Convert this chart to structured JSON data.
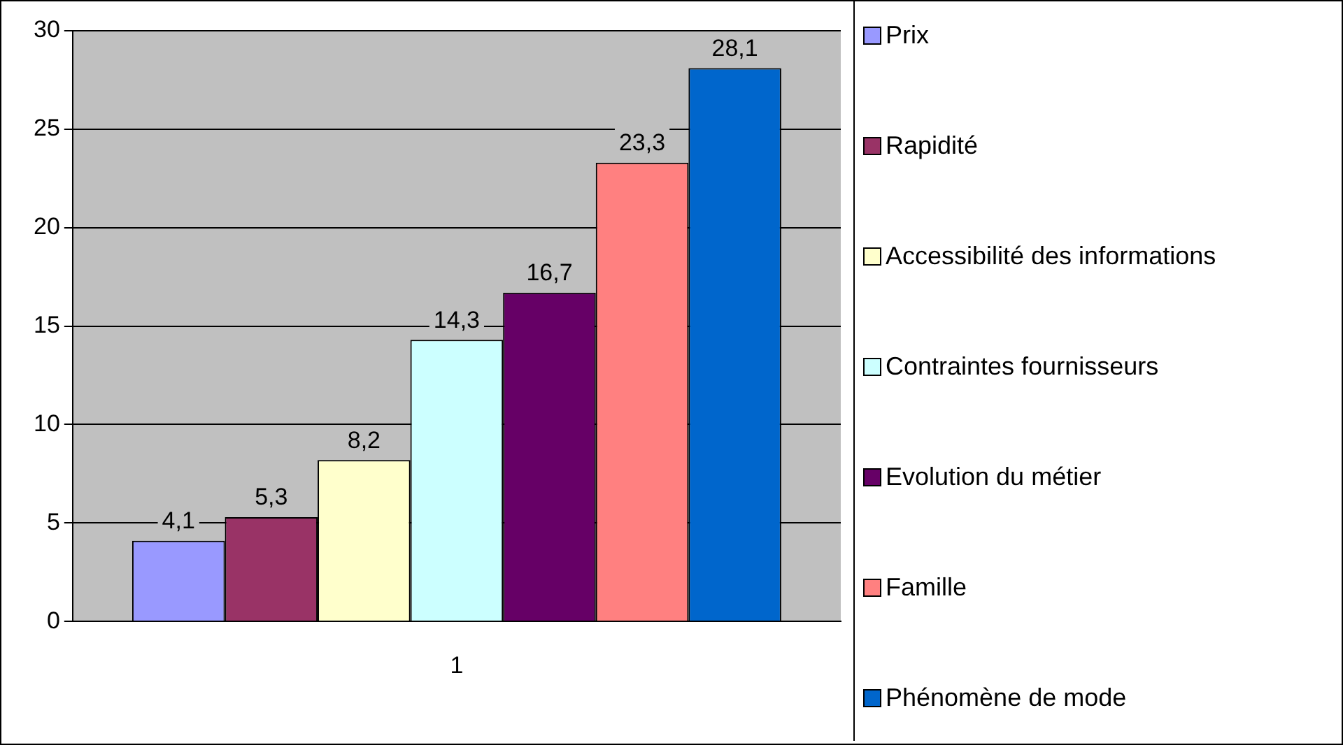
{
  "chart_data": {
    "type": "bar",
    "categories": [
      "1"
    ],
    "series": [
      {
        "name": "Prix",
        "color": "#9999ff",
        "values": [
          4.1
        ],
        "value_labels": [
          "4,1"
        ]
      },
      {
        "name": "Rapidité",
        "color": "#993366",
        "values": [
          5.3
        ],
        "value_labels": [
          "5,3"
        ]
      },
      {
        "name": "Accessibilité des informations",
        "color": "#ffffcc",
        "values": [
          8.2
        ],
        "value_labels": [
          "8,2"
        ]
      },
      {
        "name": "Contraintes fournisseurs",
        "color": "#ccffff",
        "values": [
          14.3
        ],
        "value_labels": [
          "14,3"
        ]
      },
      {
        "name": "Evolution du métier",
        "color": "#660066",
        "values": [
          16.7
        ],
        "value_labels": [
          "16,7"
        ]
      },
      {
        "name": "Famille",
        "color": "#ff8080",
        "values": [
          23.3
        ],
        "value_labels": [
          "23,3"
        ]
      },
      {
        "name": "Phénomène de mode",
        "color": "#0066cc",
        "values": [
          28.1
        ],
        "value_labels": [
          "28,1"
        ]
      }
    ],
    "ylim": [
      0,
      30
    ],
    "yticks": [
      0,
      5,
      10,
      15,
      20,
      25,
      30
    ],
    "grid": "y",
    "legend": "right"
  }
}
